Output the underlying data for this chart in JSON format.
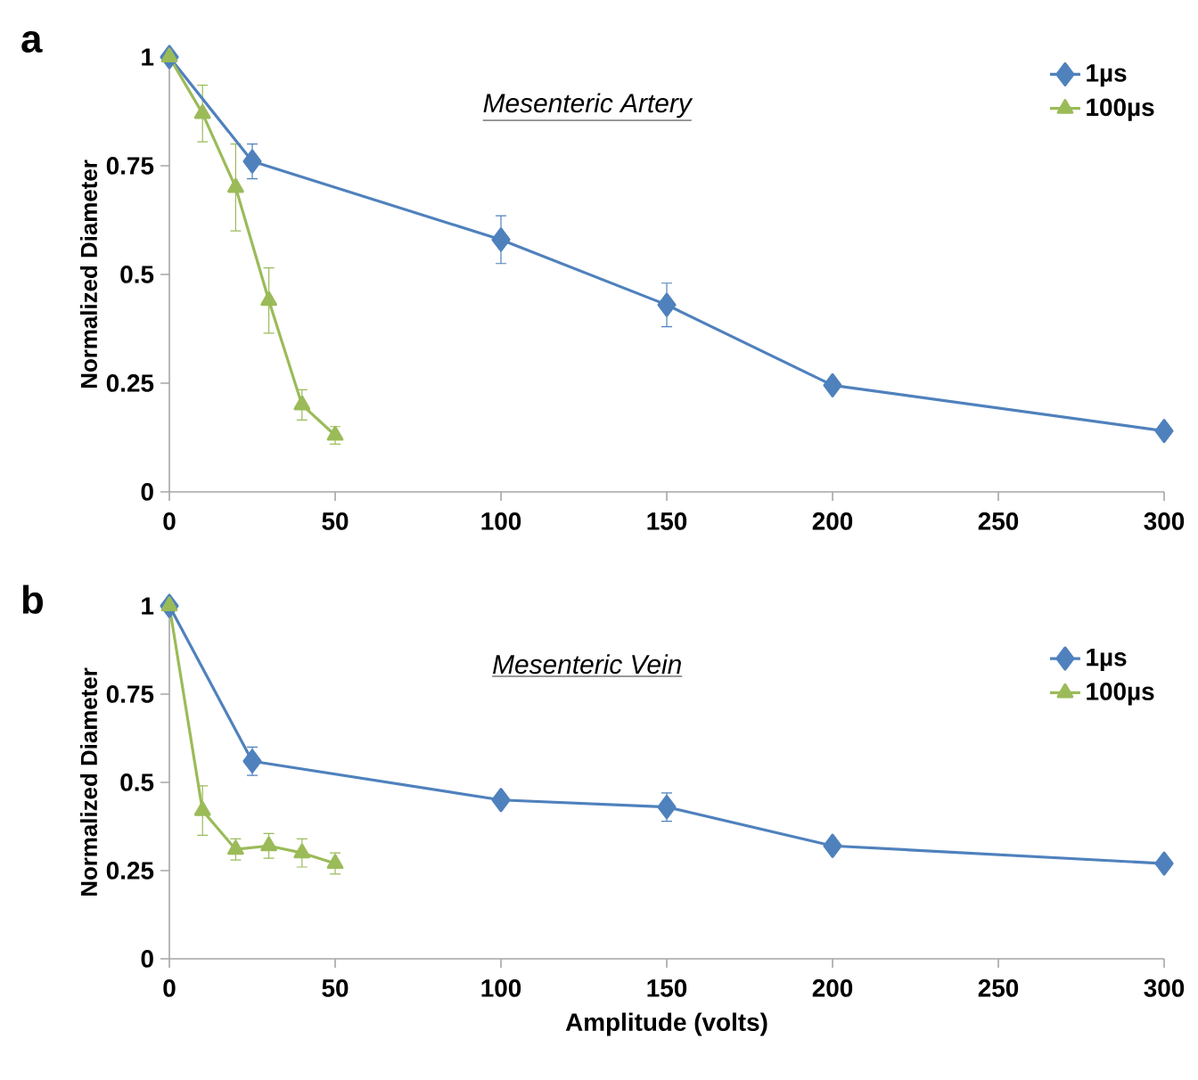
{
  "chart_data": [
    {
      "type": "line",
      "title": "Mesenteric Artery",
      "ylabel": "Normalized Diameter",
      "annotations": [
        "a"
      ],
      "xlim": [
        0,
        300
      ],
      "xticks": [
        0,
        50,
        100,
        150,
        200,
        250,
        300
      ],
      "ylim": [
        0,
        1
      ],
      "yticks": [
        0,
        0.25,
        0.5,
        0.75,
        1
      ],
      "legend": "top right",
      "line_style": "solid",
      "series": [
        {
          "name": "1µs",
          "color": "#4f81bd",
          "marker": "diamond",
          "x": [
            0,
            25,
            100,
            150,
            200,
            300
          ],
          "values": [
            1,
            0.76,
            0.58,
            0.43,
            0.245,
            0.14
          ],
          "errors": [
            null,
            0.04,
            0.055,
            0.05,
            null,
            null
          ]
        },
        {
          "name": "100µs",
          "color": "#9bbb59",
          "marker": "triangle",
          "x": [
            0,
            10,
            20,
            30,
            40,
            50
          ],
          "values": [
            1,
            0.87,
            0.7,
            0.44,
            0.2,
            0.13
          ],
          "errors": [
            null,
            0.065,
            0.1,
            0.075,
            0.035,
            0.02
          ]
        }
      ]
    },
    {
      "type": "line",
      "title": "Mesenteric Vein",
      "xlabel": "Amplitude (volts)",
      "ylabel": "Normalized Diameter",
      "annotations": [
        "b"
      ],
      "xlim": [
        0,
        300
      ],
      "xticks": [
        0,
        50,
        100,
        150,
        200,
        250,
        300
      ],
      "ylim": [
        0,
        1
      ],
      "yticks": [
        0,
        0.25,
        0.5,
        0.75,
        1
      ],
      "legend": "top right",
      "line_style": "solid",
      "series": [
        {
          "name": "1µs",
          "color": "#4f81bd",
          "marker": "diamond",
          "x": [
            0,
            25,
            100,
            150,
            200,
            300
          ],
          "values": [
            1,
            0.56,
            0.45,
            0.43,
            0.32,
            0.27
          ],
          "errors": [
            null,
            0.04,
            null,
            0.04,
            null,
            null
          ]
        },
        {
          "name": "100µs",
          "color": "#9bbb59",
          "marker": "triangle",
          "x": [
            0,
            10,
            20,
            30,
            40,
            50
          ],
          "values": [
            1,
            0.42,
            0.31,
            0.32,
            0.3,
            0.27
          ],
          "errors": [
            null,
            0.07,
            0.03,
            0.035,
            0.04,
            0.03
          ]
        }
      ]
    }
  ]
}
